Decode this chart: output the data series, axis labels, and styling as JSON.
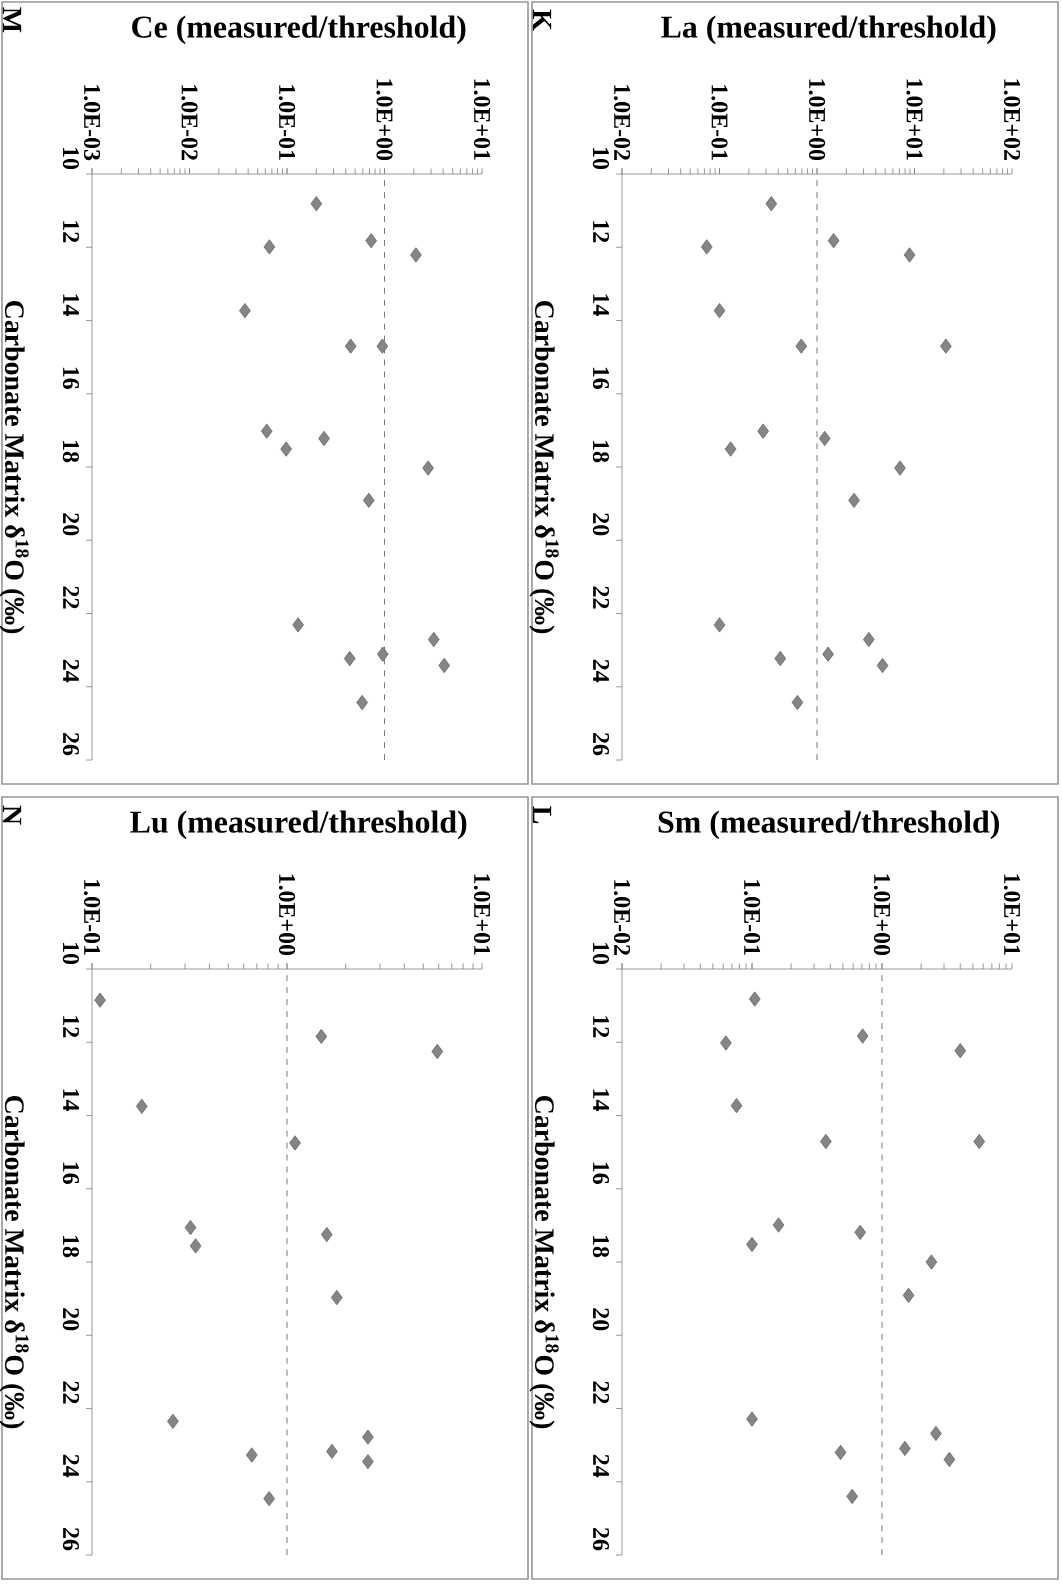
{
  "chart_data": [
    {
      "type": "scatter",
      "xlabel": "La (measured/threshold)",
      "ylabel": "Carbonate Matrix δ$^{18}$O (‰)",
      "annotations": [
        "K"
      ],
      "log": "x",
      "marker": "diamond",
      "ylim": [
        26,
        10
      ],
      "yticks": [
        10,
        12,
        14,
        16,
        18,
        20,
        22,
        24,
        26
      ],
      "xlim": [
        0.01,
        100
      ],
      "xticks": [
        {
          "value": 0.01,
          "label": "1.0E-02"
        },
        {
          "value": 0.1,
          "label": "1.0E-01"
        },
        {
          "value": 1,
          "label": "1.0E+00"
        },
        {
          "value": 10,
          "label": "1.0E+01"
        },
        {
          "value": 100,
          "label": "1.0E+02"
        }
      ],
      "ref_lines": [
        {
          "axis": "x",
          "value": 1,
          "line_style": "dashed",
          "color": "#555555"
        }
      ],
      "series": [
        {
          "color": "#858585",
          "values": [
            10.81,
            11.82,
            11.99,
            12.21,
            13.73,
            14.7,
            14.7,
            17.02,
            17.22,
            17.51,
            18.03,
            18.91,
            22.31,
            22.71,
            23.11,
            23.23,
            23.42,
            24.43
          ],
          "x": [
            0.34,
            1.48,
            0.074,
            8.9,
            0.1,
            0.69,
            21,
            0.28,
            1.2,
            0.13,
            7.1,
            2.4,
            0.1,
            3.4,
            1.3,
            0.42,
            4.7,
            0.63
          ]
        }
      ]
    },
    {
      "type": "scatter",
      "xlabel": "Sm (measured/threshold)",
      "ylabel": "Carbonate Matrix δ$^{18}$O (‰)",
      "annotations": [
        "L"
      ],
      "log": "x",
      "marker": "diamond",
      "ylim": [
        26,
        10
      ],
      "yticks": [
        10,
        12,
        14,
        16,
        18,
        20,
        22,
        24,
        26
      ],
      "xlim": [
        0.01,
        10
      ],
      "xticks": [
        {
          "value": 0.01,
          "label": "1.0E-02"
        },
        {
          "value": 0.1,
          "label": "1.0E-01"
        },
        {
          "value": 1,
          "label": "1.0E+00"
        },
        {
          "value": 10,
          "label": "1.0E+01"
        }
      ],
      "ref_lines": [
        {
          "axis": "x",
          "value": 1,
          "line_style": "dashed",
          "color": "#555555"
        }
      ],
      "series": [
        {
          "color": "#858585",
          "values": [
            10.82,
            11.83,
            12.02,
            12.23,
            13.73,
            14.71,
            14.71,
            16.99,
            17.19,
            17.52,
            18.0,
            18.91,
            22.29,
            22.68,
            23.09,
            23.2,
            23.39,
            24.4
          ],
          "x": [
            0.105,
            0.71,
            0.063,
            4.0,
            0.076,
            0.37,
            5.6,
            0.16,
            0.68,
            0.1,
            2.4,
            1.6,
            0.1,
            2.6,
            1.5,
            0.48,
            3.3,
            0.59
          ]
        }
      ]
    },
    {
      "type": "scatter",
      "xlabel": "Ce (measured/threshold)",
      "ylabel": "Carbonate Matrix δ$^{18}$O (‰)",
      "annotations": [
        "M"
      ],
      "log": "x",
      "marker": "diamond",
      "ylim": [
        26,
        10
      ],
      "yticks": [
        10,
        12,
        14,
        16,
        18,
        20,
        22,
        24,
        26
      ],
      "xlim": [
        0.001,
        10
      ],
      "xticks": [
        {
          "value": 0.001,
          "label": "1.0E-03"
        },
        {
          "value": 0.01,
          "label": "1.0E-02"
        },
        {
          "value": 0.1,
          "label": "1.0E-01"
        },
        {
          "value": 1,
          "label": "1.0E+00"
        },
        {
          "value": 10,
          "label": "1.0E+01"
        }
      ],
      "ref_lines": [
        {
          "axis": "x",
          "value": 1,
          "line_style": "dashed",
          "color": "#555555"
        }
      ],
      "series": [
        {
          "color": "#858585",
          "values": [
            10.81,
            11.82,
            11.99,
            12.21,
            13.73,
            14.7,
            14.7,
            17.02,
            17.22,
            17.51,
            18.03,
            18.91,
            22.31,
            22.71,
            23.11,
            23.23,
            23.42,
            24.43
          ],
          "x": [
            0.2,
            0.73,
            0.066,
            2.1,
            0.037,
            0.45,
            0.95,
            0.062,
            0.24,
            0.098,
            2.8,
            0.69,
            0.13,
            3.2,
            0.96,
            0.44,
            4.1,
            0.59
          ]
        }
      ]
    },
    {
      "type": "scatter",
      "xlabel": "Lu (measured/threshold)",
      "ylabel": "Carbonate Matrix δ$^{18}$O (‰)",
      "annotations": [
        "N"
      ],
      "log": "x",
      "marker": "diamond",
      "ylim": [
        26,
        10
      ],
      "yticks": [
        10,
        12,
        14,
        16,
        18,
        20,
        22,
        24,
        26
      ],
      "xlim": [
        0.1,
        10
      ],
      "xticks": [
        {
          "value": 0.1,
          "label": "1.0E-01"
        },
        {
          "value": 1,
          "label": "1.0E+00"
        },
        {
          "value": 10,
          "label": "1.0E+01"
        }
      ],
      "ref_lines": [
        {
          "axis": "x",
          "value": 1,
          "line_style": "dashed",
          "color": "#555555"
        }
      ],
      "series": [
        {
          "color": "#858585",
          "values": [
            10.85,
            11.84,
            12.25,
            13.75,
            14.75,
            17.06,
            17.25,
            17.56,
            18.97,
            22.35,
            22.78,
            23.17,
            23.27,
            23.45,
            24.46
          ],
          "x": [
            0.11,
            1.5,
            5.9,
            0.18,
            1.1,
            0.32,
            1.6,
            0.34,
            1.8,
            0.26,
            2.6,
            1.7,
            0.66,
            2.6,
            0.81
          ]
        }
      ]
    }
  ]
}
